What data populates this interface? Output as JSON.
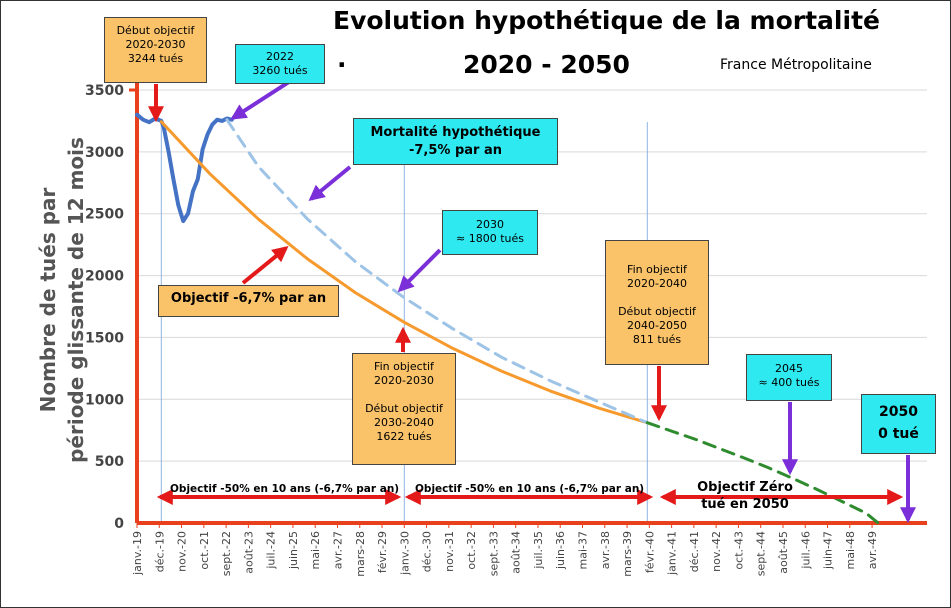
{
  "header": {
    "title_line1": "Evolution hypothétique de la mortalité",
    "title_line2": "2020 - 2050",
    "title_dot": ".",
    "region": "France Métropolitaine"
  },
  "ylabel": [
    "Nombre de tués par",
    "période  glissante de 12 mois"
  ],
  "annotations": {
    "debut": [
      "Début objectif",
      "2020-2030",
      "3244 tués"
    ],
    "y2022": [
      "2022",
      "3260 tués"
    ],
    "hyp": [
      "Mortalité hypothétique",
      "-7,5% par an"
    ],
    "y2030": [
      "2030",
      "≈ 1800 tués"
    ],
    "obj67": [
      "Objectif -6,7% par an"
    ],
    "fin2030": [
      "Fin objectif",
      "2020-2030",
      "",
      "Début objectif",
      "2030-2040",
      "1622 tués"
    ],
    "fin2040": [
      "Fin objectif",
      "2020-2040",
      "",
      "Début objectif",
      "2040-2050",
      "811 tués"
    ],
    "y2045": [
      "2045",
      "≈ 400 tués"
    ],
    "y2050": [
      "2050",
      "0 tué"
    ]
  },
  "periods": [
    "Objectif -50% en 10 ans (-6,7% par an)",
    "Objectif -50% en 10 ans (-6,7% par an)",
    "Objectif Zéro tué en 2050"
  ],
  "colors": {
    "axis": "#e8401c",
    "actual": "#4472c4",
    "objective": "#f79a2e",
    "hypothetical": "#9dc3e6",
    "zero_objective": "#2e8b2e",
    "arrow_red": "#e41a1a",
    "arrow_purple": "#7b2fd8",
    "box_orange": "#fac36a",
    "box_cyan": "#2fe9f0"
  },
  "chart_data": {
    "type": "line",
    "ylim": [
      0,
      3500
    ],
    "yticks": [
      0,
      500,
      1000,
      1500,
      2000,
      2500,
      3000,
      3500
    ],
    "x_tick_labels": [
      "janv.-19",
      "déc.-19",
      "nov.-20",
      "oct.-21",
      "sept.-22",
      "août-23",
      "juil.-24",
      "juin-25",
      "mai-26",
      "avr.-27",
      "mars-28",
      "févr.-29",
      "janv.-30",
      "déc.-30",
      "nov.-31",
      "oct.-32",
      "sept.-33",
      "août-34",
      "juil.-35",
      "juin-36",
      "mai-37",
      "avr.-38",
      "mars-39",
      "févr.-40",
      "janv.-41",
      "déc.-41",
      "nov.-42",
      "oct.-43",
      "sept.-44",
      "août-45",
      "juil.-46",
      "juin-47",
      "mai-48",
      "avr.-49"
    ],
    "x_unit": "years since janv.-19",
    "series": [
      {
        "key": "actual",
        "x": [
          0,
          0.25,
          0.5,
          0.75,
          1.0,
          1.1,
          1.3,
          1.5,
          1.7,
          1.9,
          2.1,
          2.3,
          2.5,
          2.7,
          2.9,
          3.1,
          3.3,
          3.5,
          3.7,
          3.9
        ],
        "y": [
          3300,
          3260,
          3240,
          3270,
          3250,
          3200,
          3000,
          2780,
          2570,
          2440,
          2500,
          2680,
          2780,
          3020,
          3140,
          3220,
          3260,
          3250,
          3270,
          3260
        ]
      },
      {
        "key": "objective",
        "x": [
          1,
          3,
          5,
          7,
          9,
          11,
          13,
          15,
          17,
          19,
          21
        ],
        "y": [
          3244,
          2823,
          2456,
          2137,
          1860,
          1622,
          1411,
          1228,
          1068,
          929,
          811
        ]
      },
      {
        "key": "hypothetical",
        "x": [
          3.7,
          5,
          7,
          9,
          11,
          13,
          15,
          17,
          19,
          21
        ],
        "y": [
          3260,
          2880,
          2460,
          2110,
          1820,
          1570,
          1340,
          1150,
          980,
          811
        ]
      },
      {
        "key": "zero_objective",
        "x": [
          21,
          23,
          25,
          26,
          27,
          28,
          30,
          30.5
        ],
        "y": [
          811,
          675,
          525,
          445,
          360,
          270,
          80,
          0
        ]
      }
    ]
  }
}
